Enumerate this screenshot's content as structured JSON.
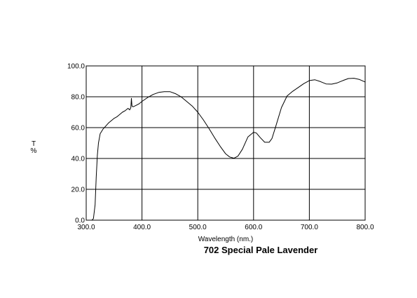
{
  "chart_data": {
    "type": "line",
    "title": "702 Special Pale Lavender",
    "xlabel": "Wavelength (nm.)",
    "ylabel_top": "T",
    "ylabel_bottom": "%",
    "xlim": [
      300,
      800
    ],
    "ylim": [
      0,
      100
    ],
    "grid": true,
    "x_ticks": [
      300,
      400,
      500,
      600,
      700,
      800
    ],
    "x_tick_labels": [
      "300.0",
      "400.0",
      "500.0",
      "600.0",
      "700.0",
      "800.0"
    ],
    "y_ticks": [
      0,
      20,
      40,
      60,
      80,
      100
    ],
    "y_tick_labels": [
      "0.0",
      "20.0",
      "40.0",
      "60.0",
      "80.0",
      "100.0"
    ],
    "series": [
      {
        "x": [
          310,
          313,
          316,
          318,
          320,
          322,
          325,
          330,
          335,
          340,
          345,
          350,
          355,
          360,
          365,
          370,
          375,
          378,
          380,
          381,
          382,
          384,
          387,
          390,
          395,
          400,
          410,
          420,
          430,
          440,
          450,
          460,
          470,
          480,
          490,
          500,
          510,
          520,
          530,
          540,
          550,
          557,
          565,
          572,
          580,
          590,
          600,
          605,
          612,
          620,
          628,
          633,
          640,
          650,
          660,
          670,
          680,
          690,
          700,
          710,
          720,
          730,
          740,
          750,
          760,
          770,
          780,
          790,
          800
        ],
        "y": [
          0,
          1,
          10,
          28,
          42,
          50,
          56,
          59,
          61,
          63,
          64.5,
          66,
          67,
          68.5,
          70,
          71,
          72.5,
          71.5,
          73,
          79,
          74,
          73.5,
          74,
          74.5,
          75.5,
          77,
          79.5,
          81.5,
          82.8,
          83.3,
          83.3,
          82,
          80,
          77,
          74,
          70,
          65,
          59.5,
          53.5,
          48,
          43,
          41,
          40.2,
          41.5,
          46,
          54,
          57,
          56.5,
          53.5,
          50.5,
          50.5,
          53,
          61,
          73,
          80.5,
          83.5,
          86,
          88.5,
          90.5,
          91,
          89.8,
          88.3,
          88.2,
          89,
          90.5,
          91.8,
          92,
          91.2,
          89.6
        ]
      }
    ]
  }
}
